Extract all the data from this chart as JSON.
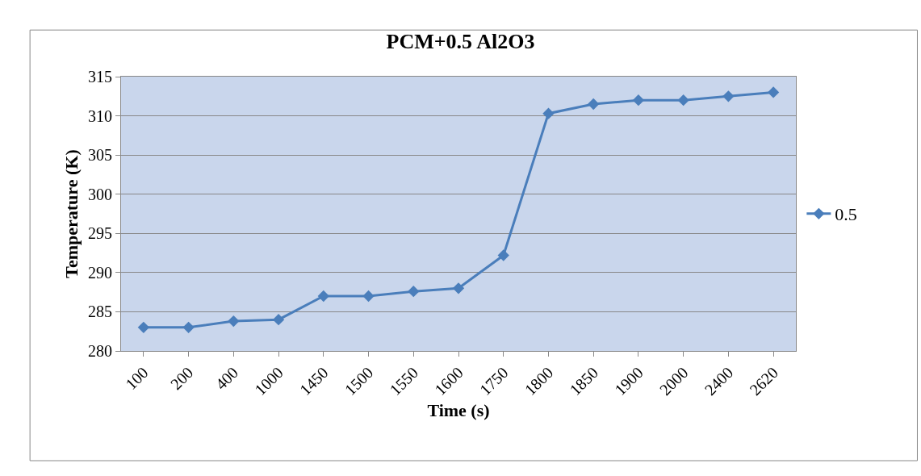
{
  "chart_data": {
    "type": "line",
    "title": "PCM+0.5 Al2O3",
    "xlabel": "Time (s)",
    "ylabel": "Temperature (K)",
    "categories": [
      "100",
      "200",
      "400",
      "1000",
      "1450",
      "1500",
      "1550",
      "1600",
      "1750",
      "1800",
      "1850",
      "1900",
      "2000",
      "2400",
      "2620"
    ],
    "series": [
      {
        "name": "0.5",
        "color": "#4a7ebb",
        "values": [
          283,
          283,
          283.8,
          284,
          287,
          287,
          287.6,
          288,
          292.2,
          310.3,
          311.5,
          312,
          312,
          312.5,
          313
        ]
      }
    ],
    "ylim": [
      280,
      315
    ],
    "yticks": [
      280,
      285,
      290,
      295,
      300,
      305,
      310,
      315
    ],
    "grid": "y",
    "legend": "right",
    "marker": "diamond",
    "line_style": "solid"
  }
}
